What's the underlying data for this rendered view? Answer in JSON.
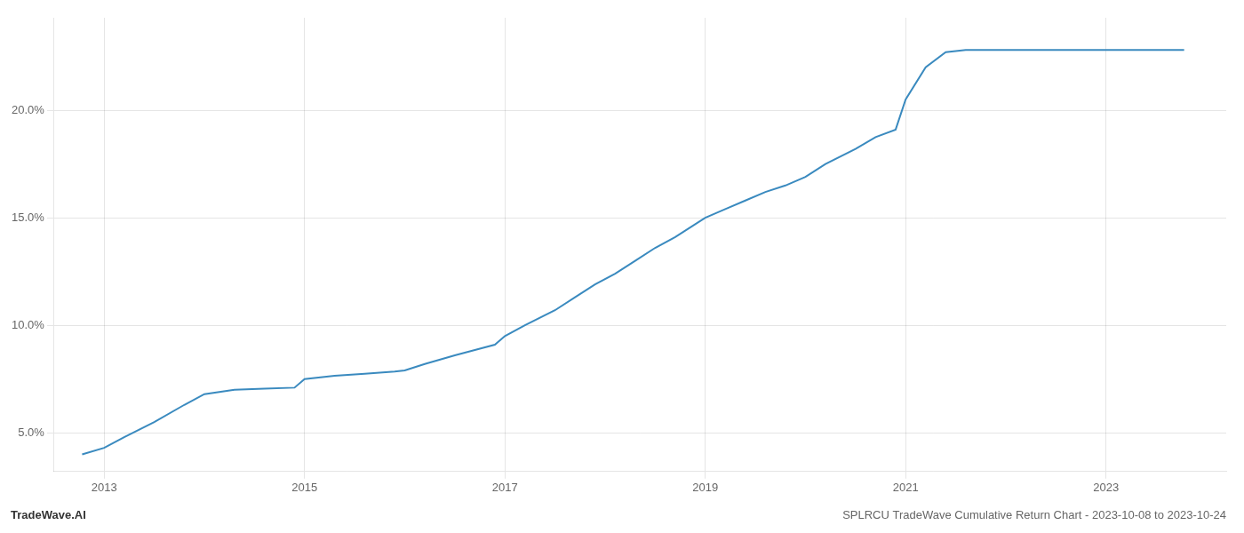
{
  "chart_data": {
    "type": "line",
    "title": "SPLRCU TradeWave Cumulative Return Chart - 2023-10-08 to 2023-10-24",
    "annotations": [
      "TradeWave.AI"
    ],
    "x": [
      2012.78,
      2013.0,
      2013.2,
      2013.5,
      2013.8,
      2014.0,
      2014.3,
      2014.6,
      2014.9,
      2015.0,
      2015.3,
      2015.6,
      2015.9,
      2016.0,
      2016.2,
      2016.5,
      2016.7,
      2016.9,
      2017.0,
      2017.2,
      2017.5,
      2017.7,
      2017.9,
      2018.1,
      2018.3,
      2018.5,
      2018.7,
      2018.9,
      2019.0,
      2019.2,
      2019.4,
      2019.6,
      2019.8,
      2020.0,
      2020.2,
      2020.5,
      2020.7,
      2020.9,
      2021.0,
      2021.2,
      2021.4,
      2021.6,
      2022.0,
      2022.5,
      2023.0,
      2023.5,
      2023.78
    ],
    "values": [
      4.0,
      4.3,
      4.8,
      5.5,
      6.3,
      6.8,
      7.0,
      7.05,
      7.1,
      7.5,
      7.65,
      7.75,
      7.85,
      7.9,
      8.2,
      8.6,
      8.85,
      9.1,
      9.5,
      10.0,
      10.7,
      11.3,
      11.9,
      12.4,
      13.0,
      13.6,
      14.1,
      14.7,
      15.0,
      15.4,
      15.8,
      16.2,
      16.5,
      16.9,
      17.5,
      18.2,
      18.75,
      19.1,
      20.5,
      22.0,
      22.7,
      22.8,
      22.8,
      22.8,
      22.8,
      22.8,
      22.8
    ],
    "color": "#3a8abf",
    "xlim": [
      2012.5,
      2024.2
    ],
    "xticks": [
      2013,
      2015,
      2017,
      2019,
      2021,
      2023
    ],
    "ylim": [
      3.2,
      24.3
    ],
    "yticks": [
      {
        "value": 5.0,
        "label": "5.0%"
      },
      {
        "value": 10.0,
        "label": "10.0%"
      },
      {
        "value": 15.0,
        "label": "15.0%"
      },
      {
        "value": 20.0,
        "label": "20.0%"
      }
    ],
    "grid": true
  }
}
